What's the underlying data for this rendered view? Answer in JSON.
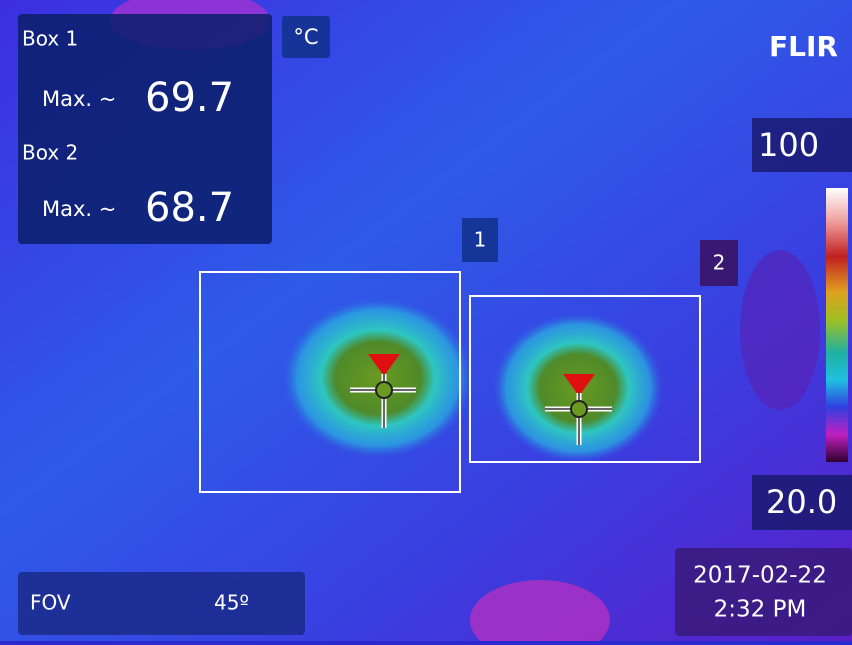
{
  "header": {
    "unit": "°C",
    "brand": "FLIR"
  },
  "measurements": [
    {
      "label": "Box 1",
      "stat": "Max. ~",
      "value": "69.7",
      "marker": "1"
    },
    {
      "label": "Box 2",
      "stat": "Max. ~",
      "value": "68.7",
      "marker": "2"
    }
  ],
  "scale": {
    "max": "100",
    "min": "20.0"
  },
  "footer": {
    "fov_label": "FOV",
    "fov_value": "45º",
    "date": "2017-02-22",
    "time": "2:32 PM"
  }
}
